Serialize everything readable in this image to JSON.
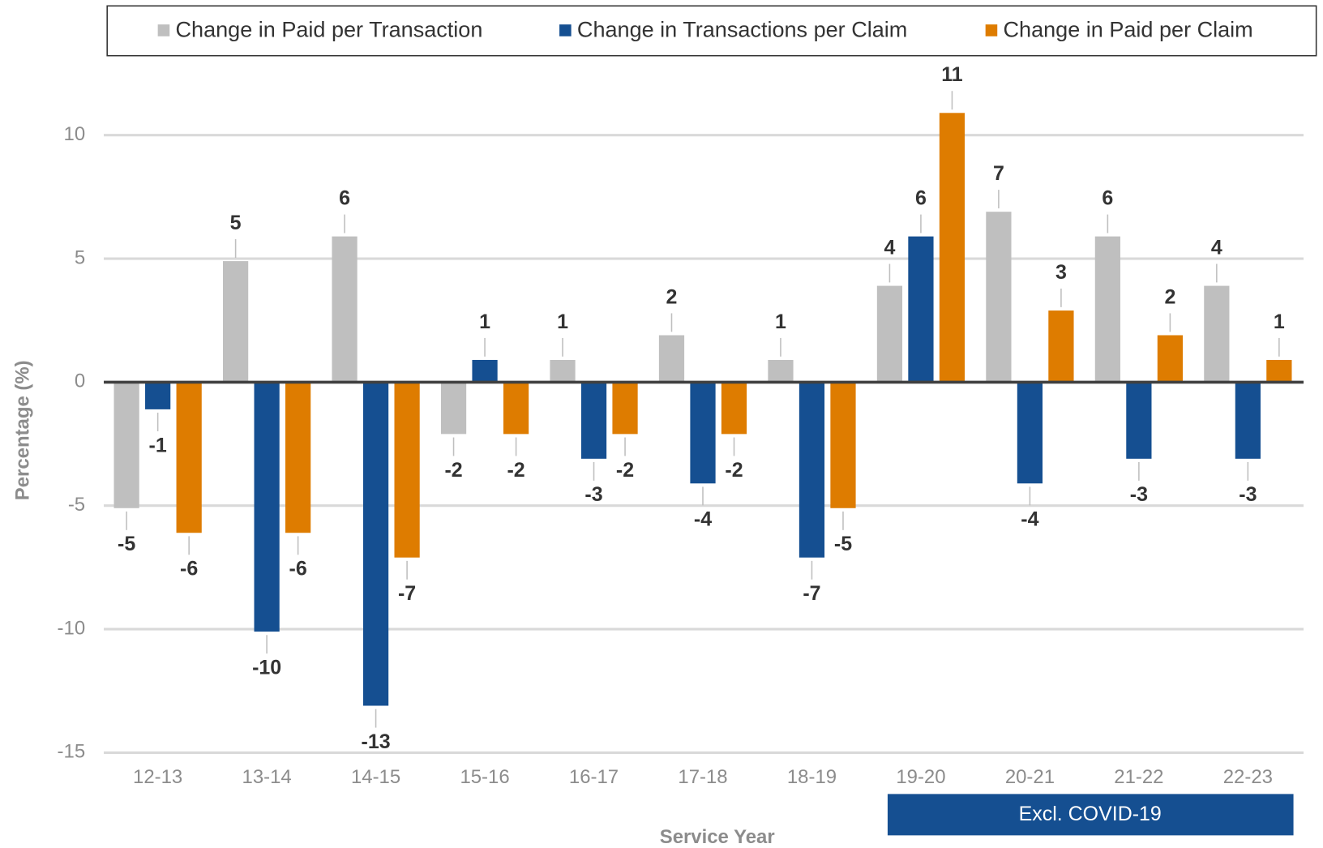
{
  "chart_data": {
    "type": "bar",
    "legend": "top",
    "grid": true,
    "y_label": "Percentage (%)",
    "x_label": "Service Year",
    "annotation": "Excl. COVID-19",
    "categories": [
      "12-13",
      "13-14",
      "14-15",
      "15-16",
      "16-17",
      "17-18",
      "18-19",
      "19-20",
      "20-21",
      "21-22",
      "22-23"
    ],
    "ylim": [
      -15,
      12.5
    ],
    "yticks": [
      -15,
      -10,
      -5,
      0,
      5,
      10
    ],
    "series": [
      {
        "name": "Change in Paid per Transaction",
        "color": "#bfbfbf",
        "values": [
          -5.1,
          4.9,
          5.9,
          -2.1,
          0.9,
          1.9,
          0.9,
          3.9,
          6.9,
          5.9,
          3.9
        ],
        "value_labels": [
          "-5",
          "5",
          "6",
          "-2",
          "1",
          "2",
          "1",
          "4",
          "7",
          "6",
          "4"
        ]
      },
      {
        "name": "Change in Transactions per Claim",
        "color": "#154f91",
        "values": [
          -1.1,
          -10.1,
          -13.1,
          0.9,
          -3.1,
          -4.1,
          -7.1,
          5.9,
          -4.1,
          -3.1,
          -3.1
        ],
        "value_labels": [
          "-1",
          "-10",
          "-13",
          "1",
          "-3",
          "-4",
          "-7",
          "6",
          "-4",
          "-3",
          "-3"
        ]
      },
      {
        "name": "Change in Paid per Claim",
        "color": "#de7c00",
        "values": [
          -6.1,
          -6.1,
          -7.1,
          -2.1,
          -2.1,
          -2.1,
          -5.1,
          10.9,
          2.9,
          1.9,
          0.9
        ],
        "value_labels": [
          "-6",
          "-6",
          "-7",
          "-2",
          "-2",
          "-2",
          "-5",
          "11",
          "3",
          "2",
          "1"
        ]
      }
    ]
  }
}
